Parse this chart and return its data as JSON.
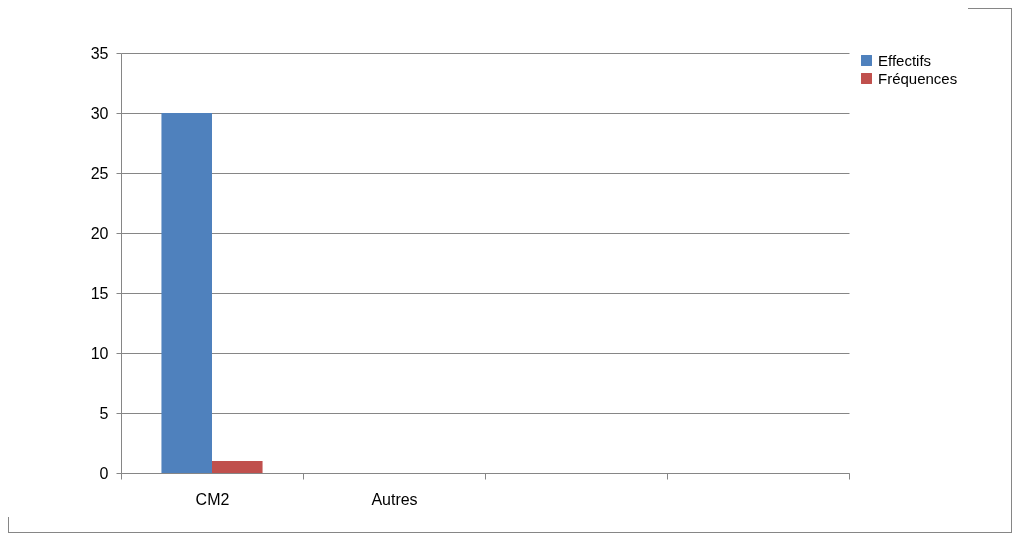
{
  "chart_data": {
    "type": "bar",
    "categories": [
      "CM2",
      "Autres",
      null,
      null
    ],
    "series": [
      {
        "name": "Effectifs",
        "color": "#4f81bd",
        "values": [
          30,
          null,
          null,
          null
        ]
      },
      {
        "name": "Fréquences",
        "color": "#c0504d",
        "values": [
          1,
          null,
          null,
          null
        ]
      }
    ],
    "ylim": [
      0,
      35
    ],
    "yticks": [
      0,
      5,
      10,
      15,
      20,
      25,
      30,
      35
    ],
    "grid": "y",
    "legend": "right"
  }
}
